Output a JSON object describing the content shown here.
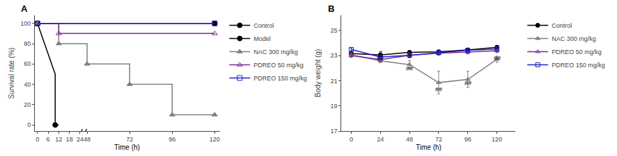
{
  "chart_data": [
    {
      "type": "line",
      "title": "A",
      "xlabel": "Time (h)",
      "ylabel": "Survival rate (%)",
      "xlim": [
        -1.5,
        123
      ],
      "xbreak": [
        24,
        48
      ],
      "xticks": [
        0,
        6,
        12,
        18,
        24,
        48,
        72,
        96,
        120
      ],
      "ylim": [
        -6,
        108
      ],
      "yticks": [
        0,
        20,
        40,
        60,
        80,
        100
      ],
      "grid": false,
      "legend": "right",
      "series": [
        {
          "name": "Control",
          "color": "#000000",
          "marker": "circle",
          "x": [
            0,
            120
          ],
          "values": [
            100,
            100
          ],
          "markers": {
            "x": [
              0,
              120
            ],
            "values": [
              100,
              100
            ]
          }
        },
        {
          "name": "Model",
          "color": "#000000",
          "marker": "circle",
          "x": [
            0,
            10,
            10,
            12
          ],
          "values": [
            100,
            50,
            0,
            0
          ],
          "markers": {
            "x": [
              0,
              10
            ],
            "values": [
              100,
              0
            ]
          }
        },
        {
          "name": "NAC 300 mg/kg",
          "color": "#808080",
          "marker": "triangle-up",
          "x": [
            0,
            12,
            12,
            48,
            48,
            72,
            72,
            96,
            96,
            120
          ],
          "values": [
            100,
            100,
            80,
            80,
            60,
            60,
            40,
            40,
            10,
            10
          ],
          "markers": {
            "x": [
              0,
              12,
              48,
              72,
              96,
              120
            ],
            "values": [
              100,
              80,
              60,
              40,
              10,
              10
            ]
          }
        },
        {
          "name": "PDREO 50 mg/kg",
          "color": "#7b2d8b",
          "marker": "triangle-up-open",
          "x": [
            0,
            12,
            12,
            120
          ],
          "values": [
            100,
            100,
            90,
            90
          ],
          "markers": {
            "x": [
              0,
              12,
              120
            ],
            "values": [
              100,
              90,
              90
            ]
          }
        },
        {
          "name": "PDREO 150 mg/kg",
          "color": "#2020cc",
          "marker": "square-open",
          "x": [
            0,
            120
          ],
          "values": [
            100,
            100
          ],
          "markers": {
            "x": [
              0,
              120
            ],
            "values": [
              100,
              100
            ]
          }
        }
      ]
    },
    {
      "type": "line",
      "title": "B",
      "xlabel": "Time (h)",
      "ylabel": "Body weight (g)",
      "xlim": [
        -8,
        135
      ],
      "xticks": [
        0,
        24,
        48,
        72,
        96,
        120
      ],
      "ylim": [
        17,
        26.2
      ],
      "yticks": [
        17,
        19,
        21,
        23,
        25
      ],
      "grid": false,
      "legend": "right",
      "series": [
        {
          "name": "Control",
          "color": "#000000",
          "marker": "circle",
          "x": [
            0,
            24,
            48,
            72,
            96,
            120
          ],
          "values": [
            23.15,
            23.05,
            23.25,
            23.3,
            23.45,
            23.65
          ],
          "errors": [
            0.12,
            0.12,
            0.12,
            0.1,
            0.12,
            0.15
          ]
        },
        {
          "name": "NAC 300 mg/kg",
          "color": "#808080",
          "marker": "triangle-up",
          "x": [
            0,
            24,
            48,
            72,
            96,
            120
          ],
          "values": [
            23.05,
            22.58,
            22.28,
            20.85,
            21.1,
            22.7
          ],
          "errors": [
            0.15,
            0.15,
            0.3,
            0.9,
            0.65,
            0.25
          ]
        },
        {
          "name": "PDREO 50 mg/kg",
          "color": "#7b2d8b",
          "marker": "triangle-up-open",
          "x": [
            0,
            24,
            48,
            72,
            96,
            120
          ],
          "values": [
            23.0,
            22.68,
            23.02,
            23.18,
            23.28,
            23.38
          ],
          "errors": [
            0.15,
            0.15,
            0.2,
            0.15,
            0.15,
            0.15
          ]
        },
        {
          "name": "PDREO 150 mg/kg",
          "color": "#2020cc",
          "marker": "square-open",
          "x": [
            0,
            24,
            48,
            72,
            96,
            120
          ],
          "values": [
            23.48,
            22.88,
            23.02,
            23.22,
            23.42,
            23.52
          ],
          "errors": [
            0.12,
            0.15,
            0.15,
            0.15,
            0.15,
            0.12
          ]
        }
      ],
      "annotations": [
        {
          "x": 24,
          "y": 22.84,
          "text": "#"
        },
        {
          "x": 48,
          "y": 22.63,
          "text": "#"
        },
        {
          "x": 24,
          "y": 22.38,
          "text": "##"
        },
        {
          "x": 48,
          "y": 21.58,
          "text": "##"
        },
        {
          "x": 72,
          "y": 19.92,
          "text": "##"
        },
        {
          "x": 96,
          "y": 20.41,
          "text": "##"
        },
        {
          "x": 120,
          "y": 22.38,
          "text": "##"
        }
      ]
    }
  ]
}
